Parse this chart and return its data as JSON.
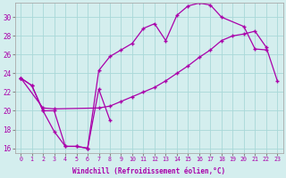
{
  "xlabel": "Windchill (Refroidissement éolien,°C)",
  "x_ticks": [
    0,
    1,
    2,
    3,
    4,
    5,
    6,
    7,
    8,
    9,
    10,
    11,
    12,
    13,
    14,
    15,
    16,
    17,
    18,
    19,
    20,
    21,
    22,
    23
  ],
  "ylim": [
    15.5,
    31.5
  ],
  "yticks": [
    16,
    18,
    20,
    22,
    24,
    26,
    28,
    30
  ],
  "background_color": "#d4eeee",
  "grid_color": "#a8d8d8",
  "line_color": "#aa00aa",
  "line1_x": [
    0,
    1,
    2,
    3,
    4,
    5,
    6,
    7,
    8
  ],
  "line1_y": [
    23.5,
    22.7,
    20.0,
    17.8,
    16.2,
    16.2,
    16.0,
    22.3,
    19.0
  ],
  "line2_x": [
    0,
    1,
    2,
    3,
    4,
    5,
    6,
    7,
    8,
    9,
    10,
    11,
    12,
    13,
    14,
    15,
    16,
    17,
    18,
    20,
    21,
    22
  ],
  "line2_y": [
    23.5,
    22.7,
    20.0,
    20.0,
    16.2,
    16.2,
    16.0,
    24.3,
    25.8,
    26.5,
    27.2,
    28.8,
    29.3,
    27.5,
    30.2,
    31.2,
    31.5,
    31.3,
    30.0,
    29.0,
    26.6,
    26.5
  ],
  "line3_x": [
    0,
    2,
    3,
    7,
    8,
    9,
    10,
    11,
    12,
    13,
    14,
    15,
    16,
    17,
    18,
    19,
    20,
    21,
    22,
    23
  ],
  "line3_y": [
    23.5,
    20.3,
    20.2,
    20.3,
    20.5,
    21.0,
    21.5,
    22.0,
    22.5,
    23.2,
    24.0,
    24.8,
    25.7,
    26.5,
    27.5,
    28.0,
    28.2,
    28.5,
    26.8,
    23.2
  ],
  "marker": "+"
}
